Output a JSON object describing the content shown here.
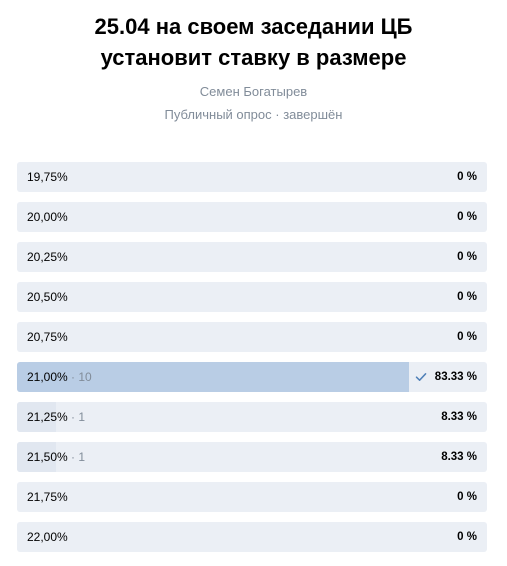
{
  "poll": {
    "title": "25.04 на своем заседании ЦБ установит ставку в размере",
    "author": "Семен Богатырев",
    "meta": "Публичный опрос · завершён",
    "accent_color": "#b9cde5",
    "track_color": "#ebeff5",
    "options": [
      {
        "label": "19,75%",
        "count": "",
        "percent": "0 %",
        "share": 0,
        "chosen": false
      },
      {
        "label": "20,00%",
        "count": "",
        "percent": "0 %",
        "share": 0,
        "chosen": false
      },
      {
        "label": "20,25%",
        "count": "",
        "percent": "0 %",
        "share": 0,
        "chosen": false
      },
      {
        "label": "20,50%",
        "count": "",
        "percent": "0 %",
        "share": 0,
        "chosen": false
      },
      {
        "label": "20,75%",
        "count": "",
        "percent": "0 %",
        "share": 0,
        "chosen": false
      },
      {
        "label": "21,00%",
        "count": " · 10",
        "percent": "83.33 %",
        "share": 83.33,
        "chosen": true
      },
      {
        "label": "21,25%",
        "count": " · 1",
        "percent": "8.33 %",
        "share": 8.33,
        "chosen": false
      },
      {
        "label": "21,50%",
        "count": " · 1",
        "percent": "8.33 %",
        "share": 8.33,
        "chosen": false
      },
      {
        "label": "21,75%",
        "count": "",
        "percent": "0 %",
        "share": 0,
        "chosen": false
      },
      {
        "label": "22,00%",
        "count": "",
        "percent": "0 %",
        "share": 0,
        "chosen": false
      }
    ]
  }
}
